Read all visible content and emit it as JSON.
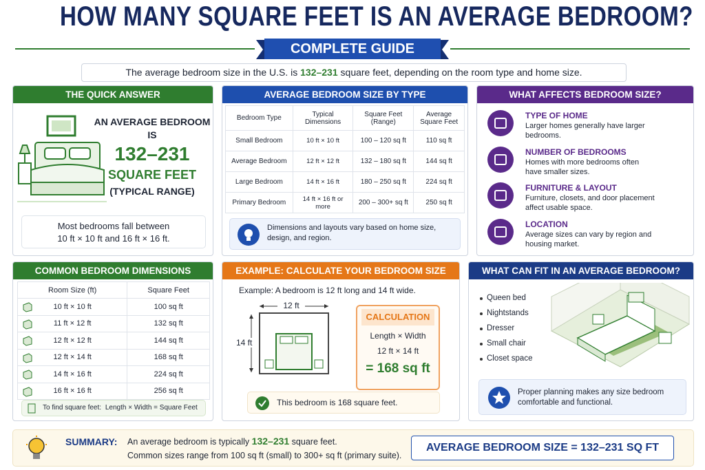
{
  "header": {
    "title": "HOW MANY SQUARE FEET IS AN AVERAGE BEDROOM?",
    "ribbon": "COMPLETE GUIDE"
  },
  "intro": {
    "before": "The average bedroom size in the U.S. is",
    "highlight": "132–231",
    "after": "square feet, depending on the room type and home size."
  },
  "quick_answer": {
    "heading": "THE QUICK ANSWER",
    "line1": "AN AVERAGE BEDROOM",
    "line2": "IS",
    "range": "132–231",
    "unit": "SQUARE FEET",
    "note": "(TYPICAL RANGE)",
    "footer": [
      "Most bedrooms fall between",
      "10 ft × 10 ft and 16 ft × 16 ft."
    ]
  },
  "size_by_type": {
    "heading": "AVERAGE BEDROOM SIZE BY TYPE",
    "columns": [
      "Bedroom Type",
      "Typical Dimensions",
      "Square Feet (Range)",
      "Average Square Feet"
    ],
    "rows": [
      [
        "Small Bedroom",
        "10 ft × 10 ft",
        "100 – 120 sq ft",
        "110 sq ft"
      ],
      [
        "Average Bedroom",
        "12 ft × 12 ft",
        "132 – 180 sq ft",
        "144 sq ft"
      ],
      [
        "Large Bedroom",
        "14 ft × 16 ft",
        "180 – 250 sq ft",
        "224 sq ft"
      ],
      [
        "Primary Bedroom",
        "14 ft × 16 ft or more",
        "200 – 300+ sq ft",
        "250 sq ft"
      ]
    ],
    "note": "Dimensions and layouts vary based on home size, design, and region."
  },
  "factors": {
    "heading": "WHAT AFFECTS BEDROOM SIZE?",
    "items": [
      {
        "title": "TYPE OF HOME",
        "text": "Larger homes generally have larger bedrooms."
      },
      {
        "title": "NUMBER OF BEDROOMS",
        "text": "Homes with more bedrooms often have smaller sizes."
      },
      {
        "title": "FURNITURE & LAYOUT",
        "text": "Furniture, closets, and door placement affect usable space."
      },
      {
        "title": "LOCATION",
        "text": "Average sizes can vary by region and housing market."
      }
    ]
  },
  "dimensions": {
    "heading": "COMMON BEDROOM DIMENSIONS",
    "columns": [
      "Room Size (ft)",
      "Square Feet"
    ],
    "rows": [
      [
        "10 ft × 10 ft",
        "100 sq ft"
      ],
      [
        "11 ft × 12 ft",
        "132 sq ft"
      ],
      [
        "12 ft × 12 ft",
        "144 sq ft"
      ],
      [
        "12 ft × 14 ft",
        "168 sq ft"
      ],
      [
        "14 ft × 16 ft",
        "224 sq ft"
      ],
      [
        "16 ft × 16 ft",
        "256 sq ft"
      ]
    ],
    "formula_label": "To find square feet:",
    "formula": "Length × Width = Square Feet"
  },
  "example": {
    "heading": "EXAMPLE: CALCULATE YOUR BEDROOM SIZE",
    "intro": "Example: A bedroom is 12 ft long and 14 ft wide.",
    "width_label": "12 ft",
    "length_label": "14 ft",
    "calc_heading": "CALCULATION",
    "calc_lines": [
      "Length × Width",
      "12 ft × 14 ft"
    ],
    "result": "= 168 sq ft",
    "note": "This bedroom is 168 square feet."
  },
  "fit": {
    "heading": "WHAT CAN FIT IN AN AVERAGE BEDROOM?",
    "items": [
      "Queen bed",
      "Nightstands",
      "Dresser",
      "Small chair",
      "Closet space"
    ],
    "note": "Proper planning makes any size bedroom comfortable and functional."
  },
  "summary": {
    "label": "SUMMARY:",
    "line1_before": "An average bedroom is typically",
    "line1_highlight": "132–231",
    "line1_after": "square feet.",
    "line2": "Common sizes range from 100 sq ft (small) to 300+ sq ft (primary suite).",
    "badge": "AVERAGE BEDROOM SIZE = 132–231 SQ FT"
  }
}
